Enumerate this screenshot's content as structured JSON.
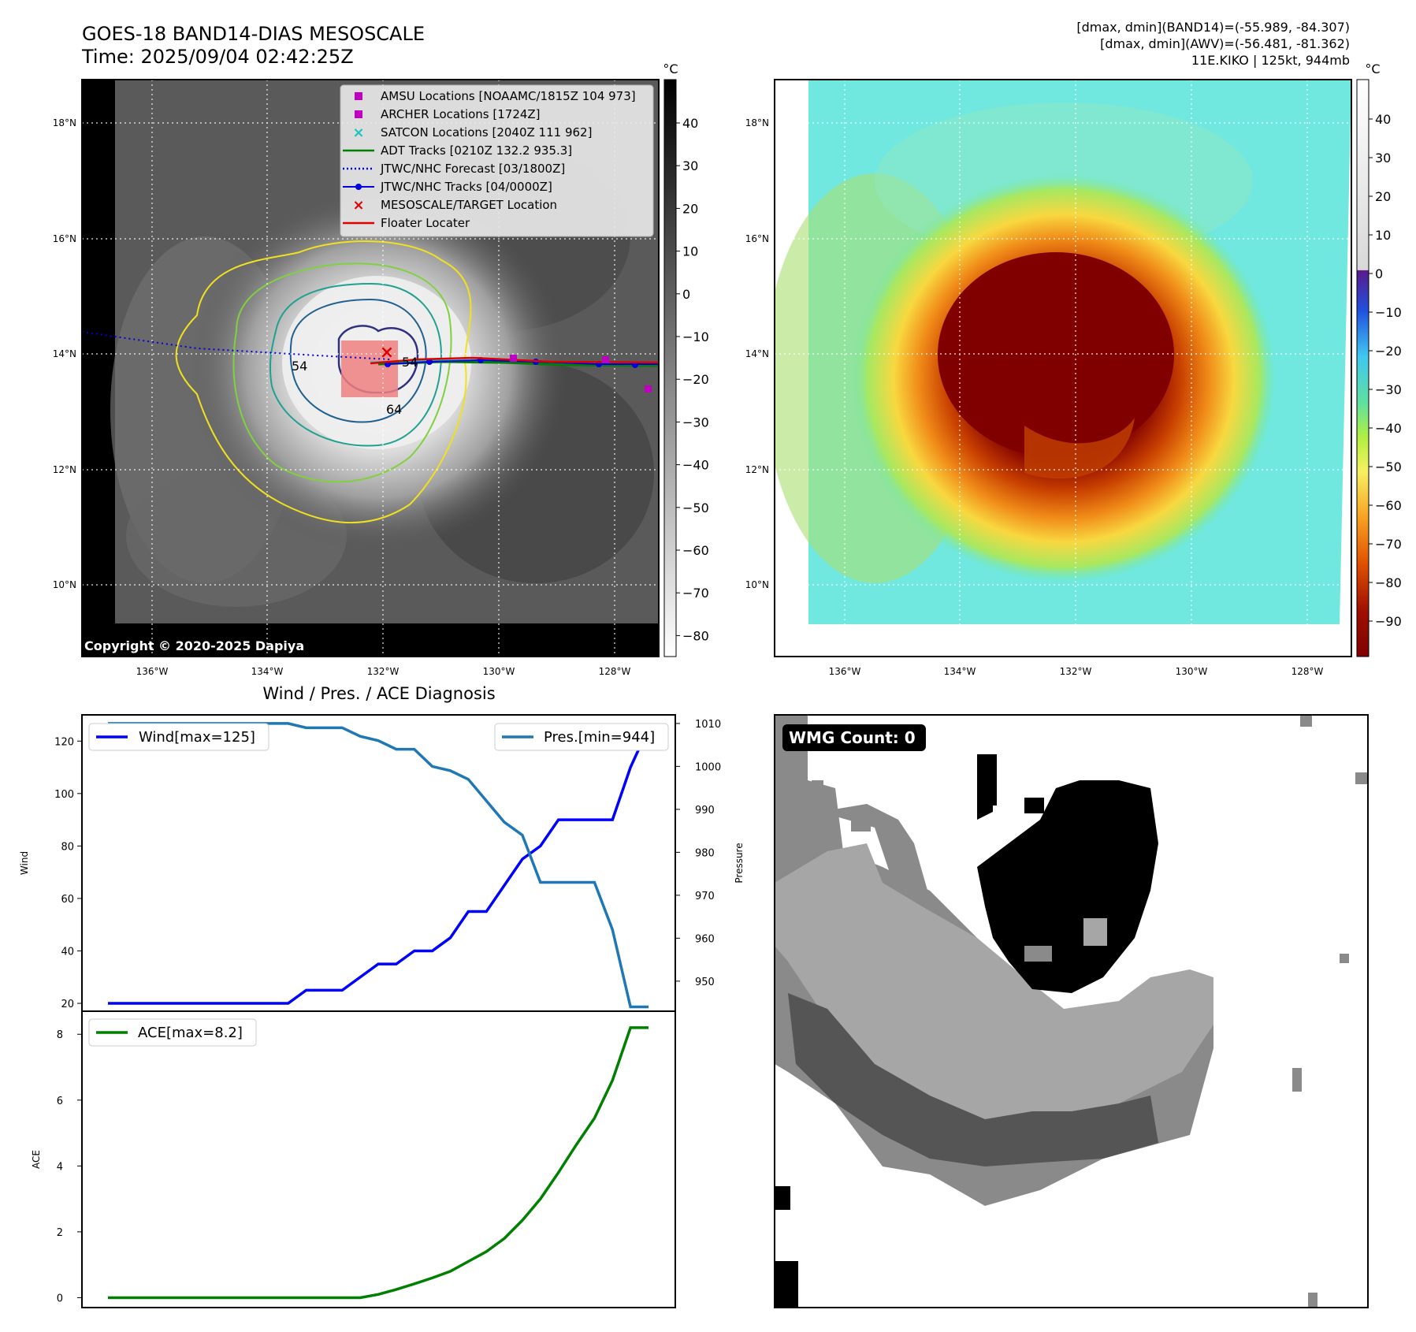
{
  "header": {
    "title_line1": "GOES-18 BAND14-DIAS MESOSCALE",
    "title_line2": "Time: 2025/09/04 02:42:25Z",
    "info_line1": "[dmax, dmin](BAND14)=(-55.989, -84.307)",
    "info_line2": "[dmax, dmin](AWV)=(-56.481, -81.362)",
    "info_line3": "11E.KIKO | 125kt, 944mb"
  },
  "map": {
    "lat_ticks": [
      "18°N",
      "16°N",
      "14°N",
      "12°N",
      "10°N"
    ],
    "lon_ticks": [
      "136°W",
      "134°W",
      "132°W",
      "130°W",
      "128°W"
    ],
    "copyright": "Copyright © 2020-2025 Dapiya",
    "contour_labels": [
      "54",
      "64",
      "54"
    ],
    "legend": [
      {
        "label": "AMSU Locations [NOAAMC/1815Z 104 973]",
        "color": "#c000c0",
        "marker": "square"
      },
      {
        "label": "ARCHER Locations [1724Z]",
        "color": "#c000c0",
        "marker": "square"
      },
      {
        "label": "SATCON Locations [2040Z 111 962]",
        "color": "#20c0c0",
        "marker": "x"
      },
      {
        "label": "ADT Tracks [0210Z 132.2 935.3]",
        "color": "#008000",
        "marker": "line"
      },
      {
        "label": "JTWC/NHC Forecast [03/1800Z]",
        "color": "#0000e0",
        "marker": "dotted"
      },
      {
        "label": "JTWC/NHC Tracks [04/0000Z]",
        "color": "#0000e0",
        "marker": "line-dot"
      },
      {
        "label": "MESOSCALE/TARGET Location",
        "color": "#e00000",
        "marker": "x"
      },
      {
        "label": "Floater Locater",
        "color": "#e00000",
        "marker": "line"
      }
    ]
  },
  "colorbar_ir": {
    "unit": "°C",
    "ticks": [
      "40",
      "30",
      "20",
      "10",
      "0",
      "−10",
      "−20",
      "−30",
      "−40",
      "−50",
      "−60",
      "−70",
      "−80"
    ]
  },
  "colorbar_wv": {
    "unit": "°C",
    "ticks": [
      "40",
      "30",
      "20",
      "10",
      "0",
      "−10",
      "−20",
      "−30",
      "−40",
      "−50",
      "−60",
      "−70",
      "−80",
      "−90"
    ]
  },
  "diagnosis": {
    "title": "Wind / Pres. / ACE Diagnosis",
    "wind_axis_label": "Wind",
    "pressure_axis_label": "Pressure",
    "ace_axis_label": "ACE",
    "wind_ticks": [
      "120",
      "100",
      "80",
      "60",
      "40",
      "20"
    ],
    "pressure_ticks": [
      "1010",
      "1000",
      "990",
      "980",
      "970",
      "960",
      "950"
    ],
    "ace_ticks": [
      "8",
      "6",
      "4",
      "2",
      "0"
    ],
    "wind_legend": "Wind[max=125]",
    "pressure_legend": "Pres.[min=944]",
    "ace_legend": "ACE[max=8.2]"
  },
  "wmg": {
    "label": "WMG Count: 0"
  },
  "chart_data": [
    {
      "type": "line",
      "title": "Wind / Pres. / ACE Diagnosis",
      "x": [
        0,
        1,
        2,
        3,
        4,
        5,
        6,
        7,
        8,
        9,
        10,
        11,
        12,
        13,
        14,
        15,
        16,
        17,
        18,
        19,
        20,
        21,
        22,
        23,
        24,
        25,
        26,
        27,
        28,
        29,
        30
      ],
      "series": [
        {
          "name": "Wind[max=125]",
          "color": "#0000ff",
          "values": [
            20,
            20,
            20,
            20,
            20,
            20,
            20,
            20,
            20,
            20,
            20,
            25,
            25,
            25,
            30,
            35,
            35,
            40,
            40,
            45,
            55,
            55,
            65,
            75,
            80,
            90,
            90,
            90,
            90,
            110,
            125
          ]
        },
        {
          "name": "Pres.[min=944]",
          "color": "#1f77b4",
          "values": [
            1010,
            1010,
            1010,
            1010,
            1010,
            1010,
            1010,
            1010,
            1010,
            1010,
            1010,
            1009,
            1009,
            1009,
            1007,
            1006,
            1004,
            1004,
            1000,
            999,
            997,
            992,
            987,
            984,
            973,
            973,
            973,
            973,
            962,
            944,
            944
          ]
        }
      ],
      "ylim_wind": [
        17,
        130
      ],
      "ylim_pressure": [
        943,
        1012
      ]
    },
    {
      "type": "line",
      "x": [
        0,
        1,
        2,
        3,
        4,
        5,
        6,
        7,
        8,
        9,
        10,
        11,
        12,
        13,
        14,
        15,
        16,
        17,
        18,
        19,
        20,
        21,
        22,
        23,
        24,
        25,
        26,
        27,
        28,
        29,
        30
      ],
      "series": [
        {
          "name": "ACE[max=8.2]",
          "color": "#008000",
          "values": [
            0,
            0,
            0,
            0,
            0,
            0,
            0,
            0,
            0,
            0,
            0,
            0,
            0,
            0,
            0,
            0.1,
            0.25,
            0.42,
            0.6,
            0.8,
            1.1,
            1.4,
            1.8,
            2.35,
            3.0,
            3.8,
            4.65,
            5.45,
            6.6,
            8.2,
            8.2
          ]
        }
      ],
      "ylim": [
        -0.3,
        8.7
      ]
    }
  ]
}
